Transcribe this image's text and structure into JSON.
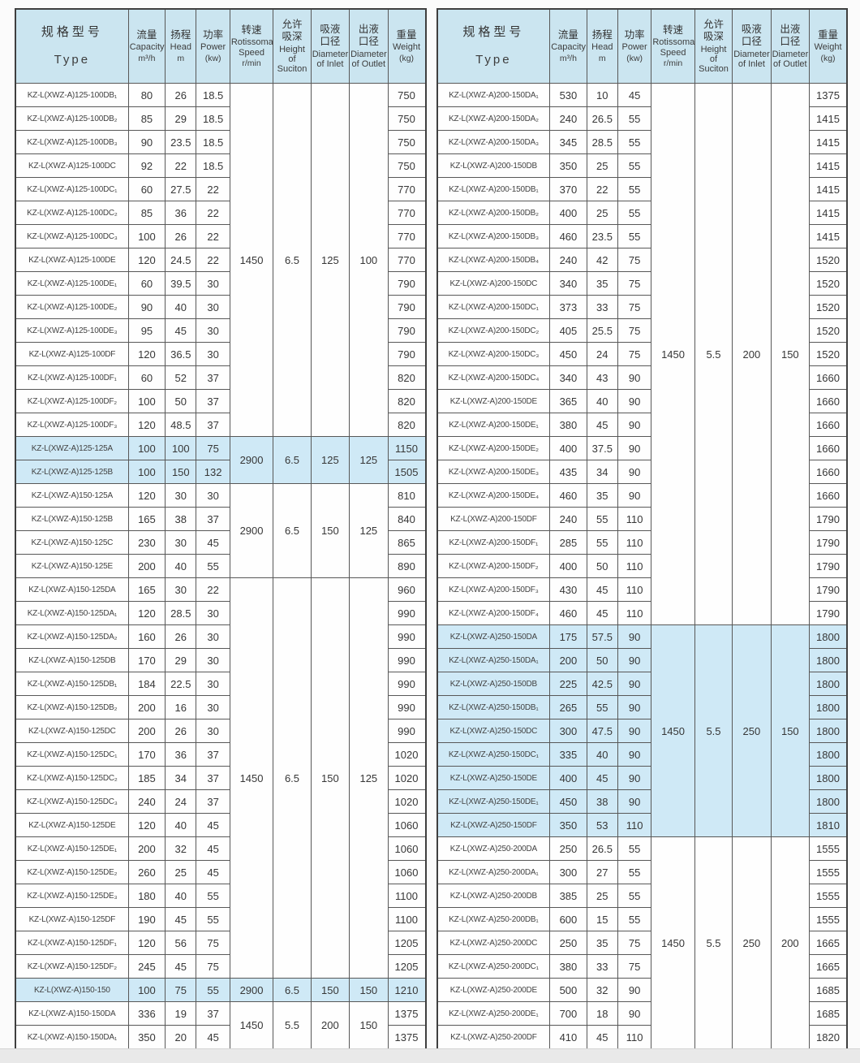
{
  "page": {
    "header_bg": "#cbe5f0",
    "highlight_bg": "#cfe9f6",
    "border_color": "#585858"
  },
  "columns": {
    "type": {
      "zh": "规格型号",
      "en": "Type"
    },
    "capacity": {
      "zh": "流量",
      "en": "Capacity",
      "unit": "m³/h"
    },
    "head": {
      "zh": "扬程",
      "en": "Head",
      "unit": "m"
    },
    "power": {
      "zh": "功率",
      "en": "Power",
      "unit": "(kw)"
    },
    "speed": {
      "zh": "转速",
      "en": "Rotissomat Speed",
      "unit": "r/min"
    },
    "suction": {
      "zh": "允许\n吸深",
      "en": "Height of Suciton",
      "unit": ""
    },
    "inlet": {
      "zh": "吸液\n口径",
      "en": "Diameter of Inlet",
      "unit": ""
    },
    "outlet": {
      "zh": "出液\n口径",
      "en": "Diameter of Outlet",
      "unit": ""
    },
    "weight": {
      "zh": "重量",
      "en": "Weight",
      "unit": "(kg)"
    }
  },
  "tables": [
    {
      "name": "left",
      "sections": [
        {
          "speed": "1450",
          "suction": "6.5",
          "inlet": "125",
          "outlet": "100",
          "highlight": false,
          "rows": [
            [
              "KZ-L(XWZ-A)125-100DB₁",
              "80",
              "26",
              "18.5",
              "750"
            ],
            [
              "KZ-L(XWZ-A)125-100DB₂",
              "85",
              "29",
              "18.5",
              "750"
            ],
            [
              "KZ-L(XWZ-A)125-100DB₃",
              "90",
              "23.5",
              "18.5",
              "750"
            ],
            [
              "KZ-L(XWZ-A)125-100DC",
              "92",
              "22",
              "18.5",
              "750"
            ],
            [
              "KZ-L(XWZ-A)125-100DC₁",
              "60",
              "27.5",
              "22",
              "770"
            ],
            [
              "KZ-L(XWZ-A)125-100DC₂",
              "85",
              "36",
              "22",
              "770"
            ],
            [
              "KZ-L(XWZ-A)125-100DC₃",
              "100",
              "26",
              "22",
              "770"
            ],
            [
              "KZ-L(XWZ-A)125-100DE",
              "120",
              "24.5",
              "22",
              "770"
            ],
            [
              "KZ-L(XWZ-A)125-100DE₁",
              "60",
              "39.5",
              "30",
              "790"
            ],
            [
              "KZ-L(XWZ-A)125-100DE₂",
              "90",
              "40",
              "30",
              "790"
            ],
            [
              "KZ-L(XWZ-A)125-100DE₃",
              "95",
              "45",
              "30",
              "790"
            ],
            [
              "KZ-L(XWZ-A)125-100DF",
              "120",
              "36.5",
              "30",
              "790"
            ],
            [
              "KZ-L(XWZ-A)125-100DF₁",
              "60",
              "52",
              "37",
              "820"
            ],
            [
              "KZ-L(XWZ-A)125-100DF₂",
              "100",
              "50",
              "37",
              "820"
            ],
            [
              "KZ-L(XWZ-A)125-100DF₃",
              "120",
              "48.5",
              "37",
              "820"
            ]
          ]
        },
        {
          "speed": "2900",
          "suction": "6.5",
          "inlet": "125",
          "outlet": "125",
          "highlight": true,
          "rows": [
            [
              "KZ-L(XWZ-A)125-125A",
              "100",
              "100",
              "75",
              "1150"
            ],
            [
              "KZ-L(XWZ-A)125-125B",
              "100",
              "150",
              "132",
              "1505"
            ]
          ]
        },
        {
          "speed": "2900",
          "suction": "6.5",
          "inlet": "150",
          "outlet": "125",
          "highlight": false,
          "rows": [
            [
              "KZ-L(XWZ-A)150-125A",
              "120",
              "30",
              "30",
              "810"
            ],
            [
              "KZ-L(XWZ-A)150-125B",
              "165",
              "38",
              "37",
              "840"
            ],
            [
              "KZ-L(XWZ-A)150-125C",
              "230",
              "30",
              "45",
              "865"
            ],
            [
              "KZ-L(XWZ-A)150-125E",
              "200",
              "40",
              "55",
              "890"
            ]
          ]
        },
        {
          "speed": "1450",
          "suction": "6.5",
          "inlet": "150",
          "outlet": "125",
          "highlight": false,
          "rows": [
            [
              "KZ-L(XWZ-A)150-125DA",
              "165",
              "30",
              "22",
              "960"
            ],
            [
              "KZ-L(XWZ-A)150-125DA₁",
              "120",
              "28.5",
              "30",
              "990"
            ],
            [
              "KZ-L(XWZ-A)150-125DA₂",
              "160",
              "26",
              "30",
              "990"
            ],
            [
              "KZ-L(XWZ-A)150-125DB",
              "170",
              "29",
              "30",
              "990"
            ],
            [
              "KZ-L(XWZ-A)150-125DB₁",
              "184",
              "22.5",
              "30",
              "990"
            ],
            [
              "KZ-L(XWZ-A)150-125DB₂",
              "200",
              "16",
              "30",
              "990"
            ],
            [
              "KZ-L(XWZ-A)150-125DC",
              "200",
              "26",
              "30",
              "990"
            ],
            [
              "KZ-L(XWZ-A)150-125DC₁",
              "170",
              "36",
              "37",
              "1020"
            ],
            [
              "KZ-L(XWZ-A)150-125DC₂",
              "185",
              "34",
              "37",
              "1020"
            ],
            [
              "KZ-L(XWZ-A)150-125DC₃",
              "240",
              "24",
              "37",
              "1020"
            ],
            [
              "KZ-L(XWZ-A)150-125DE",
              "120",
              "40",
              "45",
              "1060"
            ],
            [
              "KZ-L(XWZ-A)150-125DE₁",
              "200",
              "32",
              "45",
              "1060"
            ],
            [
              "KZ-L(XWZ-A)150-125DE₂",
              "260",
              "25",
              "45",
              "1060"
            ],
            [
              "KZ-L(XWZ-A)150-125DE₃",
              "180",
              "40",
              "55",
              "1100"
            ],
            [
              "KZ-L(XWZ-A)150-125DF",
              "190",
              "45",
              "55",
              "1100"
            ],
            [
              "KZ-L(XWZ-A)150-125DF₁",
              "120",
              "56",
              "75",
              "1205"
            ],
            [
              "KZ-L(XWZ-A)150-125DF₂",
              "245",
              "45",
              "75",
              "1205"
            ]
          ]
        },
        {
          "speed": "2900",
          "suction": "6.5",
          "inlet": "150",
          "outlet": "150",
          "highlight": true,
          "rows": [
            [
              "KZ-L(XWZ-A)150-150",
              "100",
              "75",
              "55",
              "1210"
            ]
          ]
        },
        {
          "speed": "1450",
          "suction": "5.5",
          "inlet": "200",
          "outlet": "150",
          "highlight": false,
          "rows": [
            [
              "KZ-L(XWZ-A)150-150DA",
              "336",
              "19",
              "37",
              "1375"
            ],
            [
              "KZ-L(XWZ-A)150-150DA₁",
              "350",
              "20",
              "45",
              "1375"
            ]
          ]
        }
      ]
    },
    {
      "name": "right",
      "sections": [
        {
          "speed": "1450",
          "suction": "5.5",
          "inlet": "200",
          "outlet": "150",
          "highlight": false,
          "rows": [
            [
              "KZ-L(XWZ-A)200-150DA₁",
              "530",
              "10",
              "45",
              "1375"
            ],
            [
              "KZ-L(XWZ-A)200-150DA₂",
              "240",
              "26.5",
              "55",
              "1415"
            ],
            [
              "KZ-L(XWZ-A)200-150DA₃",
              "345",
              "28.5",
              "55",
              "1415"
            ],
            [
              "KZ-L(XWZ-A)200-150DB",
              "350",
              "25",
              "55",
              "1415"
            ],
            [
              "KZ-L(XWZ-A)200-150DB₁",
              "370",
              "22",
              "55",
              "1415"
            ],
            [
              "KZ-L(XWZ-A)200-150DB₂",
              "400",
              "25",
              "55",
              "1415"
            ],
            [
              "KZ-L(XWZ-A)200-150DB₃",
              "460",
              "23.5",
              "55",
              "1415"
            ],
            [
              "KZ-L(XWZ-A)200-150DB₄",
              "240",
              "42",
              "75",
              "1520"
            ],
            [
              "KZ-L(XWZ-A)200-150DC",
              "340",
              "35",
              "75",
              "1520"
            ],
            [
              "KZ-L(XWZ-A)200-150DC₁",
              "373",
              "33",
              "75",
              "1520"
            ],
            [
              "KZ-L(XWZ-A)200-150DC₂",
              "405",
              "25.5",
              "75",
              "1520"
            ],
            [
              "KZ-L(XWZ-A)200-150DC₃",
              "450",
              "24",
              "75",
              "1520"
            ],
            [
              "KZ-L(XWZ-A)200-150DC₄",
              "340",
              "43",
              "90",
              "1660"
            ],
            [
              "KZ-L(XWZ-A)200-150DE",
              "365",
              "40",
              "90",
              "1660"
            ],
            [
              "KZ-L(XWZ-A)200-150DE₁",
              "380",
              "45",
              "90",
              "1660"
            ],
            [
              "KZ-L(XWZ-A)200-150DE₂",
              "400",
              "37.5",
              "90",
              "1660"
            ],
            [
              "KZ-L(XWZ-A)200-150DE₃",
              "435",
              "34",
              "90",
              "1660"
            ],
            [
              "KZ-L(XWZ-A)200-150DE₄",
              "460",
              "35",
              "90",
              "1660"
            ],
            [
              "KZ-L(XWZ-A)200-150DF",
              "240",
              "55",
              "110",
              "1790"
            ],
            [
              "KZ-L(XWZ-A)200-150DF₁",
              "285",
              "55",
              "110",
              "1790"
            ],
            [
              "KZ-L(XWZ-A)200-150DF₂",
              "400",
              "50",
              "110",
              "1790"
            ],
            [
              "KZ-L(XWZ-A)200-150DF₃",
              "430",
              "45",
              "110",
              "1790"
            ],
            [
              "KZ-L(XWZ-A)200-150DF₄",
              "460",
              "45",
              "110",
              "1790"
            ]
          ]
        },
        {
          "speed": "1450",
          "suction": "5.5",
          "inlet": "250",
          "outlet": "150",
          "highlight": true,
          "rows": [
            [
              "KZ-L(XWZ-A)250-150DA",
              "175",
              "57.5",
              "90",
              "1800"
            ],
            [
              "KZ-L(XWZ-A)250-150DA₁",
              "200",
              "50",
              "90",
              "1800"
            ],
            [
              "KZ-L(XWZ-A)250-150DB",
              "225",
              "42.5",
              "90",
              "1800"
            ],
            [
              "KZ-L(XWZ-A)250-150DB₁",
              "265",
              "55",
              "90",
              "1800"
            ],
            [
              "KZ-L(XWZ-A)250-150DC",
              "300",
              "47.5",
              "90",
              "1800"
            ],
            [
              "KZ-L(XWZ-A)250-150DC₁",
              "335",
              "40",
              "90",
              "1800"
            ],
            [
              "KZ-L(XWZ-A)250-150DE",
              "400",
              "45",
              "90",
              "1800"
            ],
            [
              "KZ-L(XWZ-A)250-150DE₁",
              "450",
              "38",
              "90",
              "1800"
            ],
            [
              "KZ-L(XWZ-A)250-150DF",
              "350",
              "53",
              "110",
              "1810"
            ]
          ]
        },
        {
          "speed": "1450",
          "suction": "5.5",
          "inlet": "250",
          "outlet": "200",
          "highlight": false,
          "rows": [
            [
              "KZ-L(XWZ-A)250-200DA",
              "250",
              "26.5",
              "55",
              "1555"
            ],
            [
              "KZ-L(XWZ-A)250-200DA₁",
              "300",
              "27",
              "55",
              "1555"
            ],
            [
              "KZ-L(XWZ-A)250-200DB",
              "385",
              "25",
              "55",
              "1555"
            ],
            [
              "KZ-L(XWZ-A)250-200DB₁",
              "600",
              "15",
              "55",
              "1555"
            ],
            [
              "KZ-L(XWZ-A)250-200DC",
              "250",
              "35",
              "75",
              "1665"
            ],
            [
              "KZ-L(XWZ-A)250-200DC₁",
              "380",
              "33",
              "75",
              "1665"
            ],
            [
              "KZ-L(XWZ-A)250-200DE",
              "500",
              "32",
              "90",
              "1685"
            ],
            [
              "KZ-L(XWZ-A)250-200DE₁",
              "700",
              "18",
              "90",
              "1685"
            ],
            [
              "KZ-L(XWZ-A)250-200DF",
              "410",
              "45",
              "110",
              "1820"
            ]
          ]
        }
      ]
    }
  ]
}
